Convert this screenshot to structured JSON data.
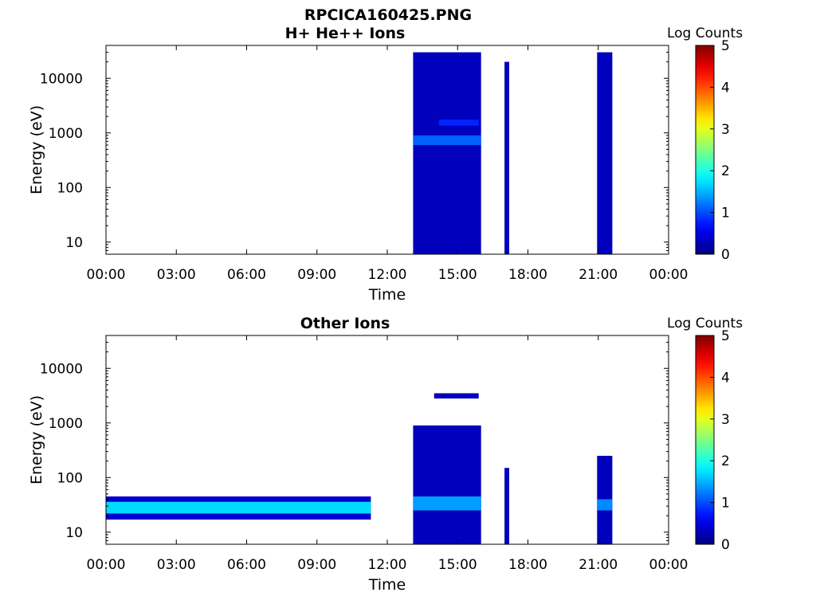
{
  "figure": {
    "title_line1": "RPCICA160425.PNG"
  },
  "chart_data": [
    {
      "type": "heatmap",
      "title": "H+ He++ Ions",
      "xlabel": "Time",
      "ylabel": "Energy (eV)",
      "x_ticks": [
        "00:00",
        "03:00",
        "06:00",
        "09:00",
        "12:00",
        "15:00",
        "18:00",
        "21:00",
        "00:00"
      ],
      "x_range_hours": [
        0,
        24
      ],
      "y_scale": "log",
      "y_range": [
        6,
        40000
      ],
      "y_ticks": [
        {
          "value": 10,
          "label": "10"
        },
        {
          "value": 100,
          "label": "100"
        },
        {
          "value": 1000,
          "label": "1000"
        },
        {
          "value": 10000,
          "label": "10000"
        }
      ],
      "colorbar": {
        "title": "Log Counts",
        "range": [
          0,
          5
        ],
        "ticks": [
          "0",
          "1",
          "2",
          "3",
          "4",
          "5"
        ],
        "colormap": "jet"
      },
      "data_intervals_hours": [
        [
          13.1,
          16.0
        ],
        [
          17.0,
          17.2
        ],
        [
          20.95,
          21.6
        ]
      ],
      "data_bands": [
        {
          "t": [
            13.1,
            16.0
          ],
          "e": [
            6,
            30000
          ],
          "log_counts": 0.3
        },
        {
          "t": [
            17.0,
            17.2
          ],
          "e": [
            6,
            20000
          ],
          "log_counts": 0.3
        },
        {
          "t": [
            20.95,
            21.6
          ],
          "e": [
            6,
            30000
          ],
          "log_counts": 0.3
        },
        {
          "t": [
            13.1,
            16.0
          ],
          "e": [
            600,
            900
          ],
          "log_counts": 1.1
        },
        {
          "t": [
            14.2,
            15.9
          ],
          "e": [
            1350,
            1750
          ],
          "log_counts": 0.8
        }
      ]
    },
    {
      "type": "heatmap",
      "title": "Other Ions",
      "xlabel": "Time",
      "ylabel": "Energy (eV)",
      "x_ticks": [
        "00:00",
        "03:00",
        "06:00",
        "09:00",
        "12:00",
        "15:00",
        "18:00",
        "21:00",
        "00:00"
      ],
      "x_range_hours": [
        0,
        24
      ],
      "y_scale": "log",
      "y_range": [
        6,
        40000
      ],
      "y_ticks": [
        {
          "value": 10,
          "label": "10"
        },
        {
          "value": 100,
          "label": "100"
        },
        {
          "value": 1000,
          "label": "1000"
        },
        {
          "value": 10000,
          "label": "10000"
        }
      ],
      "colorbar": {
        "title": "Log Counts",
        "range": [
          0,
          5
        ],
        "ticks": [
          "0",
          "1",
          "2",
          "3",
          "4",
          "5"
        ],
        "colormap": "jet"
      },
      "data_intervals_hours": [
        [
          0.0,
          11.3
        ],
        [
          13.1,
          16.0
        ],
        [
          17.0,
          17.2
        ],
        [
          20.95,
          21.6
        ]
      ],
      "data_bands": [
        {
          "t": [
            0.0,
            11.3
          ],
          "e": [
            17,
            45
          ],
          "log_counts": 0.4
        },
        {
          "t": [
            0.0,
            11.3
          ],
          "e": [
            22,
            36
          ],
          "log_counts": 1.7
        },
        {
          "t": [
            13.1,
            16.0
          ],
          "e": [
            6,
            900
          ],
          "log_counts": 0.3
        },
        {
          "t": [
            13.1,
            16.0
          ],
          "e": [
            25,
            45
          ],
          "log_counts": 1.4
        },
        {
          "t": [
            14.0,
            15.9
          ],
          "e": [
            2800,
            3500
          ],
          "log_counts": 0.3
        },
        {
          "t": [
            17.0,
            17.2
          ],
          "e": [
            6,
            150
          ],
          "log_counts": 0.3
        },
        {
          "t": [
            20.95,
            21.6
          ],
          "e": [
            6,
            250
          ],
          "log_counts": 0.3
        },
        {
          "t": [
            20.95,
            21.6
          ],
          "e": [
            25,
            40
          ],
          "log_counts": 1.3
        }
      ]
    }
  ]
}
